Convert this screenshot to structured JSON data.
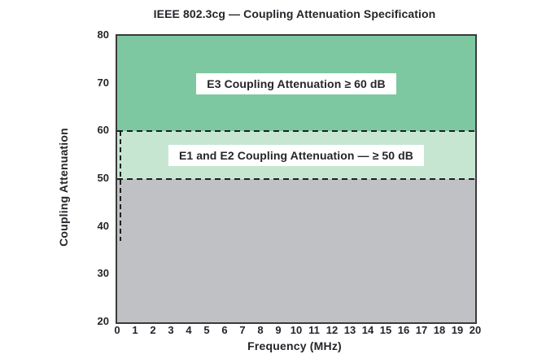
{
  "chart_data": {
    "type": "area",
    "title": "IEEE 802.3cg — Coupling Attenuation Specification",
    "xlabel": "Frequency (MHz)",
    "ylabel": "Coupling Attenuation",
    "xlim": [
      0,
      20
    ],
    "ylim": [
      20,
      80
    ],
    "xticks": [
      0,
      1,
      2,
      3,
      4,
      5,
      6,
      7,
      8,
      9,
      10,
      11,
      12,
      13,
      14,
      15,
      16,
      17,
      18,
      19,
      20
    ],
    "yticks": [
      20,
      30,
      40,
      50,
      60,
      70,
      80
    ],
    "grid": false,
    "legend": null,
    "regions": [
      {
        "name": "e3",
        "label": "E3 Coupling Attenuation ≥ 60 dB",
        "y_from": 60,
        "y_to": 80,
        "color": "#7dc8a1"
      },
      {
        "name": "e1-e2",
        "label": "E1 and E2 Coupling Attenuation — ≥ 50 dB",
        "y_from": 50,
        "y_to": 60,
        "color": "#c7e6d2"
      },
      {
        "name": "below-spec",
        "label": "",
        "y_from": 20,
        "y_to": 50,
        "color": "#bfc1c5"
      }
    ],
    "threshold_lines": [
      {
        "y": 60,
        "style": "dashed",
        "color": "#1f1f1f"
      },
      {
        "y": 50,
        "style": "dashed",
        "color": "#1f1f1f"
      }
    ],
    "vertical_boundary": {
      "x": 0.15,
      "y_from": 37,
      "y_to": 60,
      "style": "dashed",
      "color": "#1f1f1f"
    },
    "frame_color": "#3a3a3a",
    "background_color": "#ffffff"
  }
}
